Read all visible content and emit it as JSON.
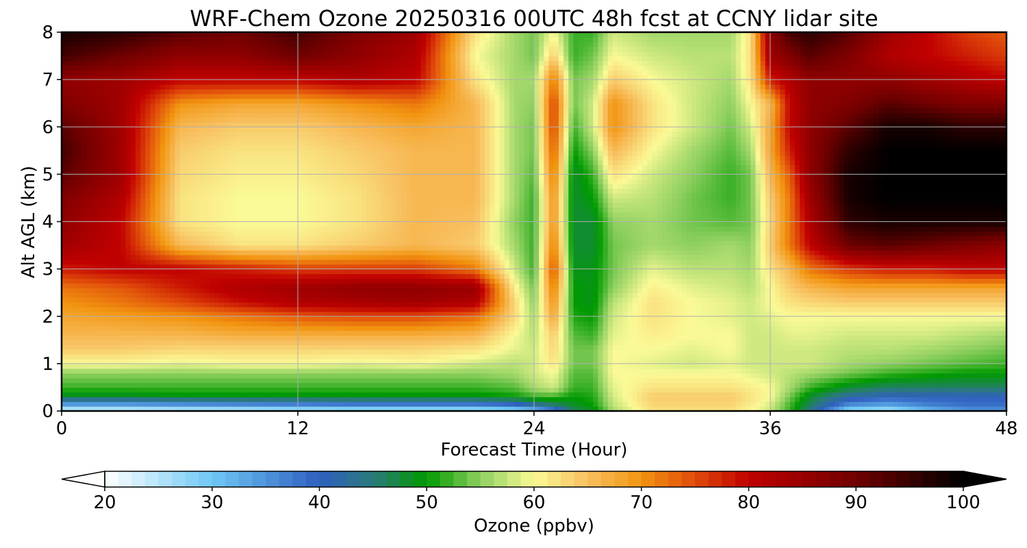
{
  "chart_data": {
    "type": "heatmap",
    "title": "WRF-Chem Ozone  20250316 00UTC 48h fcst at CCNY lidar site",
    "xlabel": "Forecast Time (Hour)",
    "ylabel": "Alt AGL (km)",
    "xlim": [
      0,
      48
    ],
    "ylim": [
      0,
      8
    ],
    "xticks": [
      0,
      12,
      24,
      36,
      48
    ],
    "yticks": [
      0,
      1,
      2,
      3,
      4,
      5,
      6,
      7,
      8
    ],
    "grid": true,
    "colorbar": {
      "label": "Ozone  (ppbv)",
      "range": [
        20,
        100
      ],
      "ticks": [
        20,
        30,
        40,
        50,
        60,
        70,
        80,
        90,
        100
      ],
      "extend": "both",
      "stops": [
        {
          "v": 20,
          "c": "#ffffff"
        },
        {
          "v": 30,
          "c": "#6ec8f5"
        },
        {
          "v": 40,
          "c": "#2f5fc0"
        },
        {
          "v": 45,
          "c": "#2a7a7a"
        },
        {
          "v": 50,
          "c": "#009a00"
        },
        {
          "v": 55,
          "c": "#8fd060"
        },
        {
          "v": 60,
          "c": "#fafa96"
        },
        {
          "v": 65,
          "c": "#f8c060"
        },
        {
          "v": 70,
          "c": "#f29410"
        },
        {
          "v": 75,
          "c": "#e04a0a"
        },
        {
          "v": 80,
          "c": "#c00000"
        },
        {
          "v": 90,
          "c": "#700000"
        },
        {
          "v": 100,
          "c": "#000000"
        }
      ]
    },
    "x": [
      0,
      3,
      6,
      9,
      12,
      15,
      18,
      21,
      23,
      24,
      25,
      26,
      27,
      28,
      30,
      32,
      34,
      35,
      36,
      37,
      38,
      40,
      42,
      44,
      46,
      48
    ],
    "y": [
      0,
      0.1,
      0.3,
      0.5,
      0.8,
      1.0,
      1.3,
      1.6,
      2.0,
      2.3,
      2.6,
      3.0,
      3.5,
      4.0,
      4.5,
      5.0,
      5.5,
      6.0,
      6.5,
      7.0,
      7.5,
      8.0
    ],
    "z": [
      [
        22,
        22,
        23,
        23,
        24,
        24,
        24,
        24,
        26,
        28,
        34,
        46,
        48,
        56,
        62,
        62,
        62,
        60,
        58,
        52,
        44,
        26,
        24,
        30,
        34,
        34
      ],
      [
        30,
        30,
        31,
        32,
        33,
        34,
        34,
        34,
        36,
        40,
        44,
        48,
        50,
        57,
        63,
        63,
        63,
        61,
        58,
        52,
        46,
        34,
        32,
        36,
        38,
        38
      ],
      [
        48,
        48,
        49,
        49,
        49,
        49,
        49,
        49,
        50,
        52,
        52,
        50,
        51,
        58,
        64,
        64,
        64,
        62,
        60,
        54,
        48,
        42,
        40,
        40,
        40,
        40
      ],
      [
        52,
        52,
        52,
        52,
        52,
        52,
        52,
        52,
        53,
        56,
        58,
        52,
        52,
        59,
        62,
        62,
        62,
        61,
        60,
        56,
        52,
        48,
        46,
        46,
        46,
        46
      ],
      [
        55,
        55,
        55,
        55,
        55,
        55,
        55,
        55,
        56,
        58,
        60,
        53,
        53,
        60,
        60,
        60,
        60,
        59,
        58,
        57,
        56,
        54,
        52,
        51,
        50,
        50
      ],
      [
        60,
        60,
        59,
        60,
        60,
        59,
        60,
        58,
        57,
        58,
        62,
        54,
        54,
        60,
        59,
        58,
        59,
        58,
        58,
        58,
        58,
        56,
        55,
        54,
        53,
        52
      ],
      [
        64,
        64,
        63,
        63,
        63,
        63,
        63,
        62,
        59,
        58,
        63,
        54,
        54,
        60,
        60,
        59,
        60,
        58,
        58,
        58,
        58,
        57,
        57,
        56,
        55,
        54
      ],
      [
        66,
        66,
        66,
        67,
        67,
        67,
        67,
        66,
        60,
        57,
        64,
        53,
        52,
        59,
        61,
        60,
        60,
        58,
        58,
        59,
        59,
        58,
        58,
        58,
        57,
        56
      ],
      [
        68,
        69,
        70,
        72,
        74,
        75,
        75,
        73,
        63,
        56,
        68,
        51,
        50,
        58,
        62,
        60,
        59,
        58,
        59,
        60,
        60,
        60,
        60,
        60,
        60,
        60
      ],
      [
        70,
        72,
        75,
        79,
        82,
        83,
        84,
        82,
        63,
        55,
        70,
        50,
        49,
        57,
        62,
        60,
        59,
        58,
        60,
        62,
        63,
        64,
        64,
        64,
        64,
        64
      ],
      [
        72,
        74,
        78,
        82,
        84,
        86,
        86,
        85,
        61,
        54,
        72,
        50,
        49,
        55,
        61,
        59,
        58,
        57,
        60,
        64,
        66,
        68,
        68,
        68,
        68,
        68
      ],
      [
        78,
        80,
        80,
        78,
        76,
        76,
        76,
        72,
        58,
        52,
        75,
        49,
        49,
        54,
        59,
        57,
        57,
        56,
        62,
        66,
        72,
        76,
        78,
        78,
        80,
        80
      ],
      [
        84,
        80,
        66,
        62,
        62,
        64,
        66,
        64,
        56,
        52,
        72,
        48,
        48,
        54,
        56,
        55,
        56,
        55,
        64,
        72,
        80,
        90,
        92,
        90,
        88,
        86
      ],
      [
        86,
        80,
        62,
        60,
        60,
        62,
        66,
        65,
        55,
        52,
        70,
        48,
        48,
        55,
        56,
        54,
        53,
        54,
        63,
        72,
        82,
        96,
        98,
        98,
        98,
        98
      ],
      [
        88,
        82,
        62,
        60,
        60,
        62,
        66,
        66,
        56,
        52,
        70,
        48,
        50,
        58,
        57,
        54,
        52,
        54,
        64,
        72,
        84,
        98,
        100,
        100,
        100,
        100
      ],
      [
        92,
        84,
        63,
        61,
        61,
        63,
        66,
        66,
        56,
        53,
        72,
        48,
        52,
        62,
        58,
        55,
        52,
        54,
        66,
        74,
        86,
        98,
        100,
        100,
        100,
        100
      ],
      [
        94,
        84,
        64,
        62,
        62,
        64,
        66,
        66,
        56,
        54,
        74,
        50,
        55,
        66,
        60,
        56,
        53,
        56,
        68,
        78,
        86,
        96,
        100,
        100,
        100,
        100
      ],
      [
        92,
        84,
        66,
        64,
        64,
        66,
        68,
        66,
        56,
        54,
        76,
        52,
        58,
        70,
        62,
        58,
        54,
        58,
        68,
        80,
        86,
        92,
        98,
        98,
        96,
        96
      ],
      [
        88,
        84,
        70,
        68,
        68,
        70,
        72,
        66,
        56,
        55,
        76,
        54,
        58,
        70,
        62,
        58,
        55,
        60,
        66,
        80,
        86,
        88,
        92,
        90,
        88,
        88
      ],
      [
        86,
        84,
        80,
        80,
        80,
        82,
        80,
        62,
        56,
        56,
        72,
        54,
        56,
        64,
        60,
        58,
        56,
        62,
        78,
        82,
        86,
        86,
        86,
        84,
        82,
        80
      ],
      [
        94,
        90,
        86,
        86,
        90,
        86,
        82,
        60,
        56,
        54,
        64,
        52,
        54,
        60,
        58,
        57,
        57,
        62,
        84,
        88,
        92,
        88,
        82,
        80,
        78,
        76
      ],
      [
        98,
        96,
        92,
        90,
        94,
        88,
        84,
        62,
        56,
        54,
        60,
        52,
        52,
        58,
        56,
        56,
        56,
        62,
        86,
        94,
        96,
        92,
        84,
        80,
        76,
        74
      ]
    ]
  }
}
